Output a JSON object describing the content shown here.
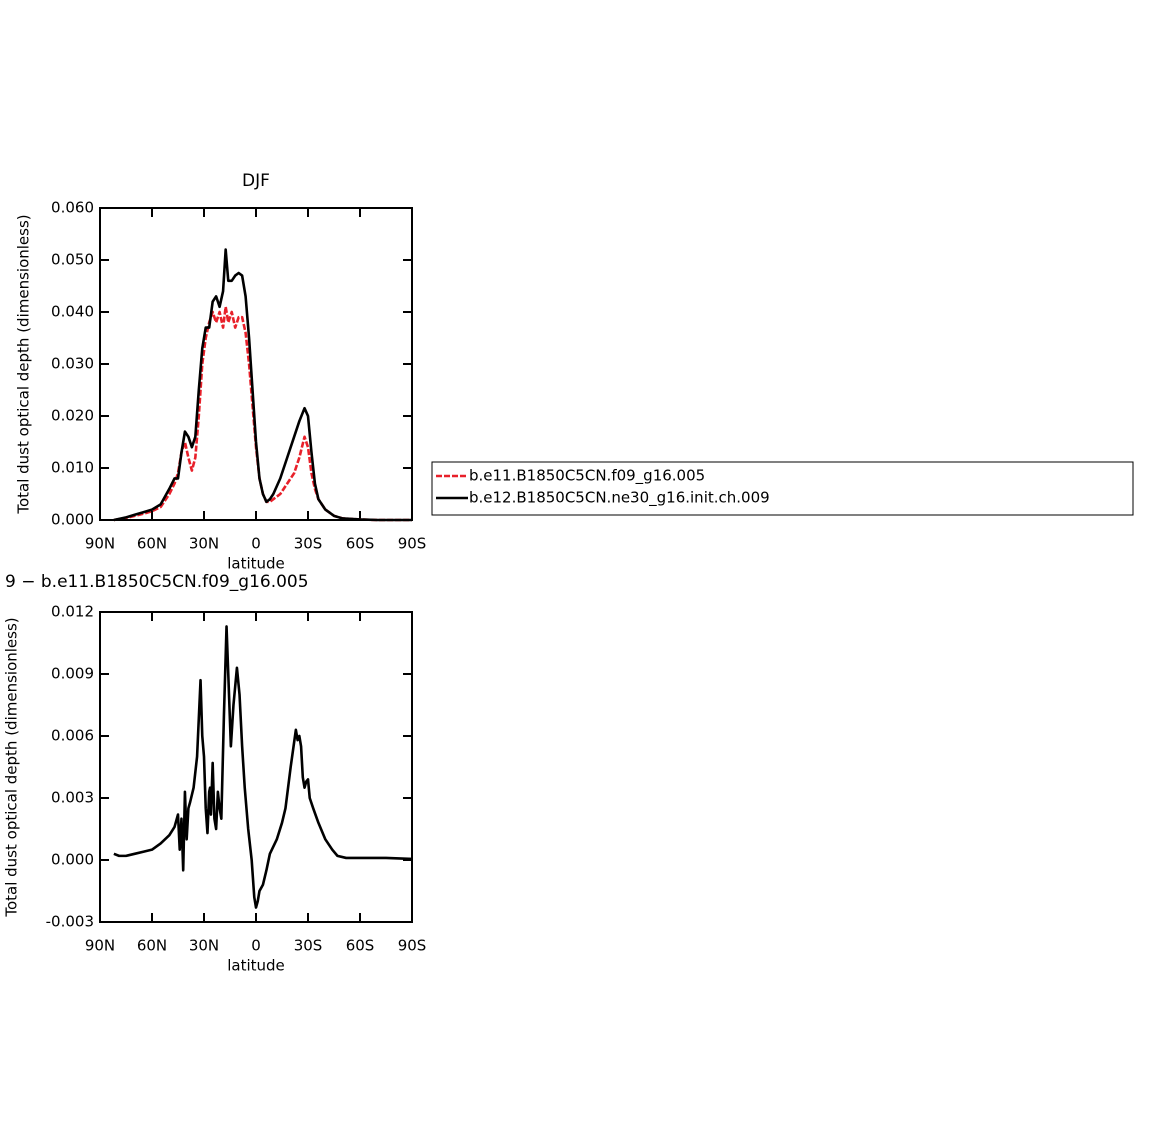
{
  "chart_data": [
    {
      "type": "line",
      "title": "DJF",
      "xlabel": "latitude",
      "ylabel": "Total dust optical depth (dimensionless)",
      "x": [
        82,
        75,
        70,
        65,
        60,
        55,
        50,
        47,
        45,
        43,
        41,
        39,
        37,
        35,
        33,
        31,
        29,
        27,
        25,
        23,
        21,
        19,
        17.5,
        16,
        14,
        12,
        10,
        8,
        6,
        4,
        2,
        0,
        -2,
        -4,
        -6,
        -8,
        -10,
        -14,
        -18,
        -22,
        -25,
        -28,
        -30,
        -32,
        -34,
        -36,
        -40,
        -45,
        -50,
        -60,
        -70,
        -90
      ],
      "xlim": [
        90,
        -90
      ],
      "xticks": [
        {
          "value": 90,
          "label": "90N"
        },
        {
          "value": 60,
          "label": "60N"
        },
        {
          "value": 30,
          "label": "30N"
        },
        0,
        {
          "value": -30,
          "label": "30S"
        },
        {
          "value": -60,
          "label": "60S"
        },
        {
          "value": -90,
          "label": "90S"
        }
      ],
      "ylim": [
        0,
        0.06
      ],
      "yticks": [
        {
          "value": 0,
          "label": "0.000"
        },
        {
          "value": 0.01,
          "label": "0.010"
        },
        {
          "value": 0.02,
          "label": "0.020"
        },
        {
          "value": 0.03,
          "label": "0.030"
        },
        {
          "value": 0.04,
          "label": "0.040"
        },
        {
          "value": 0.05,
          "label": "0.050"
        },
        {
          "value": 0.06,
          "label": "0.060"
        }
      ],
      "legend": "right",
      "series": [
        {
          "name": "b.e11.B1850C5CN.f09_g16.005",
          "color": "#e8202a",
          "dashed": true,
          "values": [
            0,
            0.0004,
            0.0008,
            0.0012,
            0.0017,
            0.0025,
            0.005,
            0.007,
            0.009,
            0.013,
            0.015,
            0.012,
            0.0095,
            0.012,
            0.02,
            0.03,
            0.035,
            0.038,
            0.04,
            0.038,
            0.04,
            0.037,
            0.041,
            0.038,
            0.04,
            0.037,
            0.039,
            0.039,
            0.036,
            0.03,
            0.022,
            0.014,
            0.008,
            0.005,
            0.0035,
            0.0035,
            0.004,
            0.005,
            0.007,
            0.009,
            0.012,
            0.016,
            0.014,
            0.009,
            0.006,
            0.004,
            0.002,
            0.0008,
            0.0003,
            0.0001,
            0,
            0
          ]
        },
        {
          "name": "b.e12.B1850C5CN.ne30_g16.init.ch.009",
          "color": "#000000",
          "dashed": false,
          "values": [
            0,
            0.0005,
            0.001,
            0.0015,
            0.002,
            0.003,
            0.006,
            0.008,
            0.008,
            0.013,
            0.017,
            0.016,
            0.014,
            0.016,
            0.025,
            0.033,
            0.037,
            0.037,
            0.042,
            0.043,
            0.041,
            0.044,
            0.052,
            0.046,
            0.046,
            0.047,
            0.0475,
            0.047,
            0.043,
            0.035,
            0.025,
            0.015,
            0.008,
            0.005,
            0.0035,
            0.004,
            0.005,
            0.008,
            0.012,
            0.016,
            0.019,
            0.0215,
            0.02,
            0.013,
            0.007,
            0.004,
            0.002,
            0.0008,
            0.0003,
            0.0001,
            0,
            0
          ]
        }
      ]
    },
    {
      "type": "line",
      "title": "9 − b.e11.B1850C5CN.f09_g16.005",
      "xlabel": "latitude",
      "ylabel": "Total dust optical depth (dimensionless)",
      "x": [
        82,
        79,
        75,
        70,
        65,
        60,
        55,
        50,
        47,
        45,
        44,
        43,
        42,
        41,
        40,
        39,
        38,
        36,
        34,
        32,
        31,
        30,
        29,
        28,
        27,
        26.5,
        26,
        25,
        24,
        23,
        22,
        21,
        20,
        18.5,
        17,
        16,
        14.5,
        13,
        11,
        9.5,
        8,
        6.5,
        4.5,
        2.5,
        1,
        0,
        -1,
        -2,
        -4,
        -6,
        -8,
        -12,
        -15,
        -17,
        -20,
        -23,
        -24,
        -25,
        -26,
        -27,
        -28,
        -29,
        -30,
        -31,
        -33,
        -36,
        -40,
        -44,
        -47,
        -52,
        -60,
        -75,
        -90
      ],
      "xlim": [
        90,
        -90
      ],
      "xticks": [
        {
          "value": 90,
          "label": "90N"
        },
        {
          "value": 60,
          "label": "60N"
        },
        {
          "value": 30,
          "label": "30N"
        },
        0,
        {
          "value": -30,
          "label": "30S"
        },
        {
          "value": -60,
          "label": "60S"
        },
        {
          "value": -90,
          "label": "90S"
        }
      ],
      "ylim": [
        -0.003,
        0.012
      ],
      "yticks": [
        -0.003,
        {
          "value": 0,
          "label": "0.000"
        },
        0.003,
        0.006,
        0.009,
        0.012
      ],
      "series": [
        {
          "color": "#000000",
          "dashed": false,
          "values": [
            0.0003,
            0.0002,
            0.0002,
            0.0003,
            0.0004,
            0.0005,
            0.0008,
            0.0012,
            0.0016,
            0.0022,
            0.0005,
            0.002,
            -0.0005,
            0.0033,
            0.001,
            0.0025,
            0.0028,
            0.0035,
            0.005,
            0.0087,
            0.006,
            0.005,
            0.0025,
            0.0013,
            0.0033,
            0.0035,
            0.0022,
            0.0047,
            0.002,
            0.0015,
            0.0033,
            0.0025,
            0.002,
            0.007,
            0.0113,
            0.009,
            0.0055,
            0.0075,
            0.0093,
            0.008,
            0.0055,
            0.0035,
            0.0015,
            0,
            -0.0018,
            -0.0023,
            -0.002,
            -0.0015,
            -0.0012,
            -0.0005,
            0.0003,
            0.001,
            0.0018,
            0.0025,
            0.0045,
            0.0063,
            0.0058,
            0.006,
            0.0055,
            0.004,
            0.0035,
            0.0038,
            0.0039,
            0.003,
            0.0025,
            0.0018,
            0.001,
            0.0005,
            0.0002,
            0.0001,
            0.0001,
            0.0001,
            5e-05
          ]
        }
      ]
    }
  ]
}
